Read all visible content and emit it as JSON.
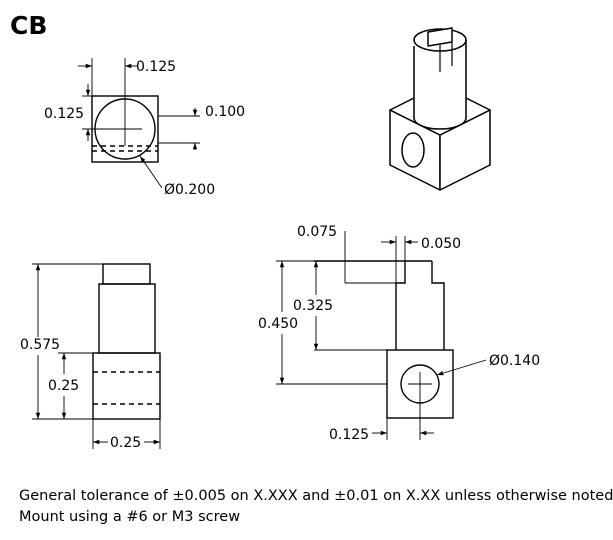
{
  "title": "CB",
  "dimensions": {
    "top_view": {
      "slot_offset": "0.125",
      "hole_center_from_edge": "0.125",
      "slot_width": "0.100",
      "hole_diameter": "Ø0.200"
    },
    "front_view": {
      "overall_height": "0.575",
      "block_height": "0.25",
      "block_width": "0.25"
    },
    "side_view": {
      "slot_depth_step": "0.075",
      "slot_width": "0.050",
      "pin_length": "0.325",
      "hole_center_height": "0.450",
      "hole_diameter": "Ø0.140",
      "hole_center_offset": "0.125"
    }
  },
  "notes": [
    "General tolerance of ±0.005 on X.XXX and ±0.01 on X.XX unless otherwise noted",
    "Mount using a #6 or M3 screw"
  ]
}
